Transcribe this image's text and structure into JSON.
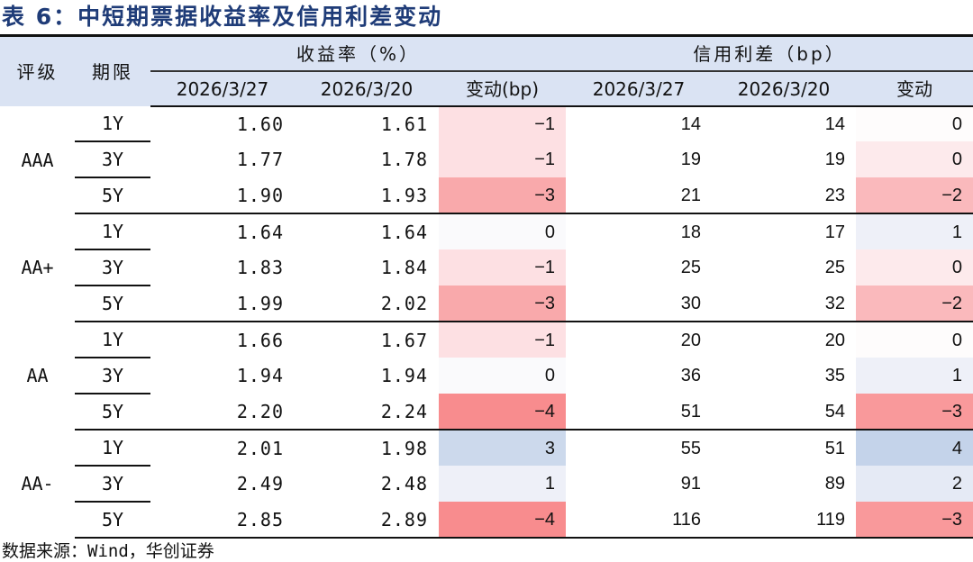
{
  "title": "表 6：中短期票据收益率及信用利差变动",
  "header": {
    "rating": "评级",
    "tenor": "期限",
    "yield_group": "收益率（%）",
    "spread_group": "信用利差（bp）",
    "yield_date1": "2026/3/27",
    "yield_date2": "2026/3/20",
    "yield_change": "变动(bp)",
    "spread_date1": "2026/3/27",
    "spread_date2": "2026/3/20",
    "spread_change": "变动"
  },
  "groups": [
    {
      "rating": "AAA",
      "rows": [
        {
          "tenor": "1Y",
          "y1": "1.60",
          "y2": "1.61",
          "yc": "-1",
          "yc_color": "#fde0e3",
          "s1": "14",
          "s2": "14",
          "sc": "0",
          "sc_color": "#fefcfc"
        },
        {
          "tenor": "3Y",
          "y1": "1.77",
          "y2": "1.78",
          "yc": "-1",
          "yc_color": "#fde0e3",
          "s1": "19",
          "s2": "19",
          "sc": "0",
          "sc_color": "#fdeaec"
        },
        {
          "tenor": "5Y",
          "y1": "1.90",
          "y2": "1.93",
          "yc": "-3",
          "yc_color": "#f9a9ab",
          "s1": "21",
          "s2": "23",
          "sc": "-2",
          "sc_color": "#fab9bc"
        }
      ]
    },
    {
      "rating": "AA+",
      "rows": [
        {
          "tenor": "1Y",
          "y1": "1.64",
          "y2": "1.64",
          "yc": "0",
          "yc_color": "#fafafc",
          "s1": "18",
          "s2": "17",
          "sc": "1",
          "sc_color": "#eef0f8"
        },
        {
          "tenor": "3Y",
          "y1": "1.83",
          "y2": "1.84",
          "yc": "-1",
          "yc_color": "#fde0e3",
          "s1": "25",
          "s2": "25",
          "sc": "0",
          "sc_color": "#fdeaec"
        },
        {
          "tenor": "5Y",
          "y1": "1.99",
          "y2": "2.02",
          "yc": "-3",
          "yc_color": "#f9a9ab",
          "s1": "30",
          "s2": "32",
          "sc": "-2",
          "sc_color": "#fab9bc"
        }
      ]
    },
    {
      "rating": "AA",
      "rows": [
        {
          "tenor": "1Y",
          "y1": "1.66",
          "y2": "1.67",
          "yc": "-1",
          "yc_color": "#fde0e3",
          "s1": "20",
          "s2": "20",
          "sc": "0",
          "sc_color": "#fefcfc"
        },
        {
          "tenor": "3Y",
          "y1": "1.94",
          "y2": "1.94",
          "yc": "0",
          "yc_color": "#fafafc",
          "s1": "36",
          "s2": "35",
          "sc": "1",
          "sc_color": "#eef0f8"
        },
        {
          "tenor": "5Y",
          "y1": "2.20",
          "y2": "2.24",
          "yc": "-4",
          "yc_color": "#f88c8e",
          "s1": "51",
          "s2": "54",
          "sc": "-3",
          "sc_color": "#f9999b"
        }
      ]
    },
    {
      "rating": "AA-",
      "rows": [
        {
          "tenor": "1Y",
          "y1": "2.01",
          "y2": "1.98",
          "yc": "3",
          "yc_color": "#ccd9ec",
          "s1": "55",
          "s2": "51",
          "sc": "4",
          "sc_color": "#c4d3ea"
        },
        {
          "tenor": "3Y",
          "y1": "2.49",
          "y2": "2.48",
          "yc": "1",
          "yc_color": "#eef0f8",
          "s1": "91",
          "s2": "89",
          "sc": "2",
          "sc_color": "#e5eaf5"
        },
        {
          "tenor": "5Y",
          "y1": "2.85",
          "y2": "2.89",
          "yc": "-4",
          "yc_color": "#f88c8e",
          "s1": "116",
          "s2": "119",
          "sc": "-3",
          "sc_color": "#f9999b"
        }
      ]
    }
  ],
  "source": "数据来源：Wind，华创证券"
}
